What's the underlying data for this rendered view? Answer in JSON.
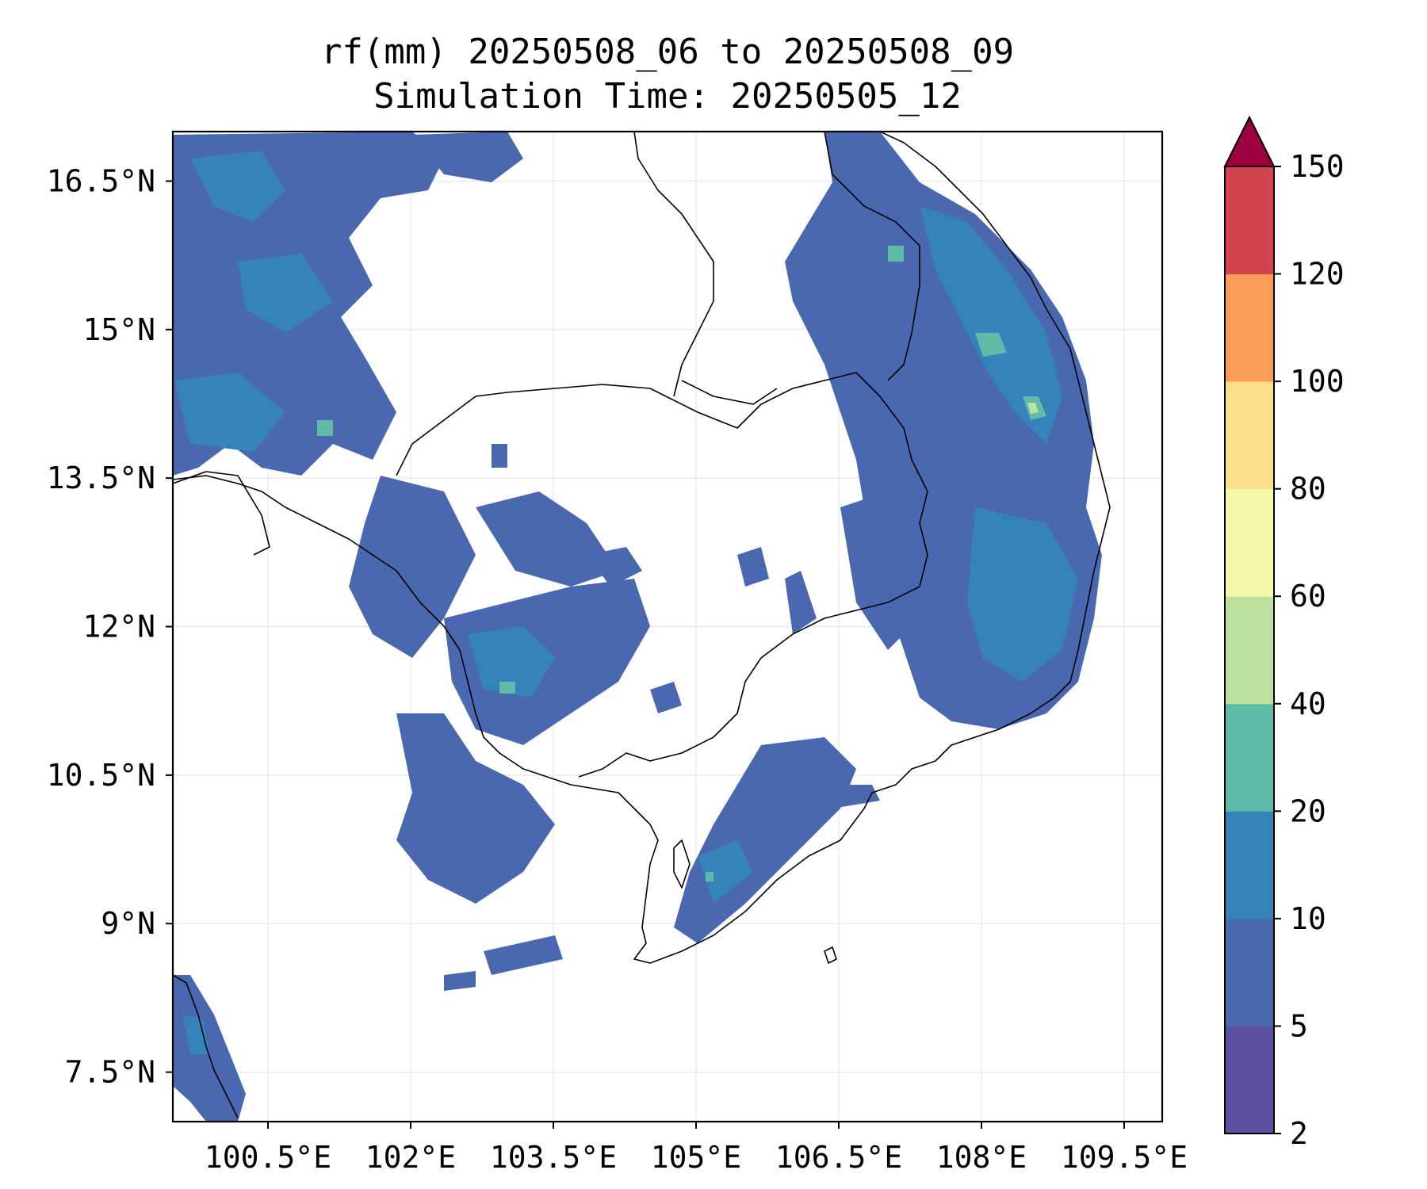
{
  "title": {
    "line1": "rf(mm) 20250508_06 to 20250508_09",
    "line2": "Simulation Time: 20250505_12"
  },
  "map": {
    "lon_range": [
      99.5,
      109.9
    ],
    "lat_range": [
      7.0,
      17.0
    ],
    "x_ticks": [
      "100.5°E",
      "102°E",
      "103.5°E",
      "105°E",
      "106.5°E",
      "108°E",
      "109.5°E"
    ],
    "x_tick_values": [
      100.5,
      102.0,
      103.5,
      105.0,
      106.5,
      108.0,
      109.5
    ],
    "y_ticks": [
      "16.5°N",
      "15°N",
      "13.5°N",
      "12°N",
      "10.5°N",
      "9°N",
      "7.5°N"
    ],
    "y_tick_values": [
      16.5,
      15.0,
      13.5,
      12.0,
      10.5,
      9.0,
      7.5
    ],
    "grid": true
  },
  "colorbar": {
    "levels": [
      "2",
      "5",
      "10",
      "20",
      "40",
      "60",
      "80",
      "100",
      "120",
      "150"
    ],
    "colors": [
      "#5e4fa2",
      "#4a68b0",
      "#3682ba",
      "#5fbaa8",
      "#bde2a0",
      "#f3f9a8",
      "#fbdf8a",
      "#f99d59",
      "#d3424f",
      "#9e0142"
    ],
    "extend": "max"
  }
}
